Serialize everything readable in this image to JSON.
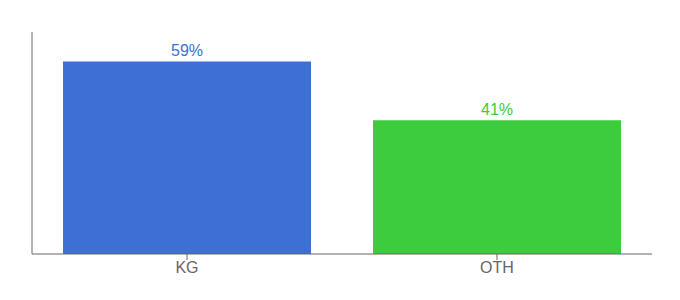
{
  "chart_data": {
    "type": "bar",
    "categories": [
      "KG",
      "OTH"
    ],
    "values": [
      59,
      41
    ],
    "value_labels": [
      "59%",
      "41%"
    ],
    "colors": [
      "#3d6fd4",
      "#3dcc3d"
    ],
    "ylim": [
      0,
      68
    ],
    "data_labels": true,
    "grid": false,
    "tick_labels": "x"
  }
}
